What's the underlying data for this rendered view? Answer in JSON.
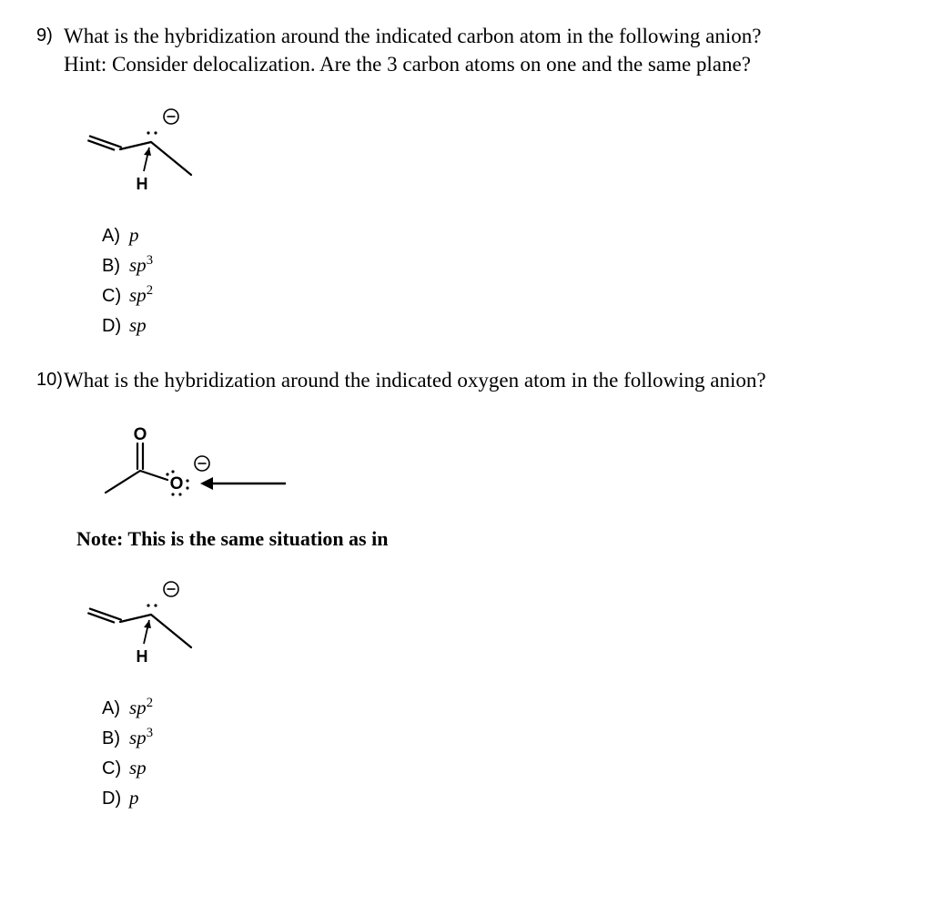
{
  "q9": {
    "number": "9)",
    "text_line1": "What is the hybridization around the indicated carbon atom in the following anion?",
    "text_line2": "Hint: Consider delocalization. Are the 3 carbon atoms on one and the same plane?",
    "choices": {
      "A": {
        "letter": "A)",
        "value_html": "p"
      },
      "B": {
        "letter": "B)",
        "value_html": "sp<sup>3</sup>"
      },
      "C": {
        "letter": "C)",
        "value_html": "sp<sup>2</sup>"
      },
      "D": {
        "letter": "D)",
        "value_html": "sp"
      }
    },
    "diagram": {
      "type": "allyl-carbanion",
      "line_color": "#000000",
      "line_width": 2.2,
      "H_label": "H",
      "H_font_size": 18,
      "H_font_family": "Arial, Helvetica, sans-serif",
      "H_font_weight": "bold",
      "minus_circle_r": 8,
      "minus_stroke": "#000000",
      "dot_r": 1.6
    }
  },
  "q10": {
    "number": "10)",
    "text_line1": "What is the hybridization around the indicated oxygen atom in the following anion?",
    "note_text": "Note: This is the same situation as in",
    "choices": {
      "A": {
        "letter": "A)",
        "value_html": "sp<sup>2</sup>"
      },
      "B": {
        "letter": "B)",
        "value_html": "sp<sup>3</sup>"
      },
      "C": {
        "letter": "C)",
        "value_html": "sp"
      },
      "D": {
        "letter": "D)",
        "value_html": "p"
      }
    },
    "diagram_top": {
      "type": "carboxylate-anion",
      "line_color": "#000000",
      "line_width": 2.2,
      "O_top_label": "O",
      "O_side_label": "O",
      "label_font_size": 19,
      "label_font_family": "Arial, Helvetica, sans-serif",
      "label_font_weight": "bold",
      "dot_r": 1.6,
      "minus_circle_r": 8,
      "arrow_color": "#000000",
      "arrow_width": 2.4
    },
    "diagram_bottom": {
      "type": "allyl-carbanion",
      "line_color": "#000000",
      "line_width": 2.2,
      "H_label": "H",
      "H_font_size": 18,
      "H_font_family": "Arial, Helvetica, sans-serif",
      "H_font_weight": "bold",
      "minus_circle_r": 8,
      "minus_stroke": "#000000",
      "dot_r": 1.6
    }
  },
  "colors": {
    "text": "#000000",
    "background": "#ffffff"
  },
  "fonts": {
    "question_serif": "Times New Roman",
    "question_size_pt": 17,
    "choice_sans": "Arial",
    "choice_size_pt": 15
  }
}
